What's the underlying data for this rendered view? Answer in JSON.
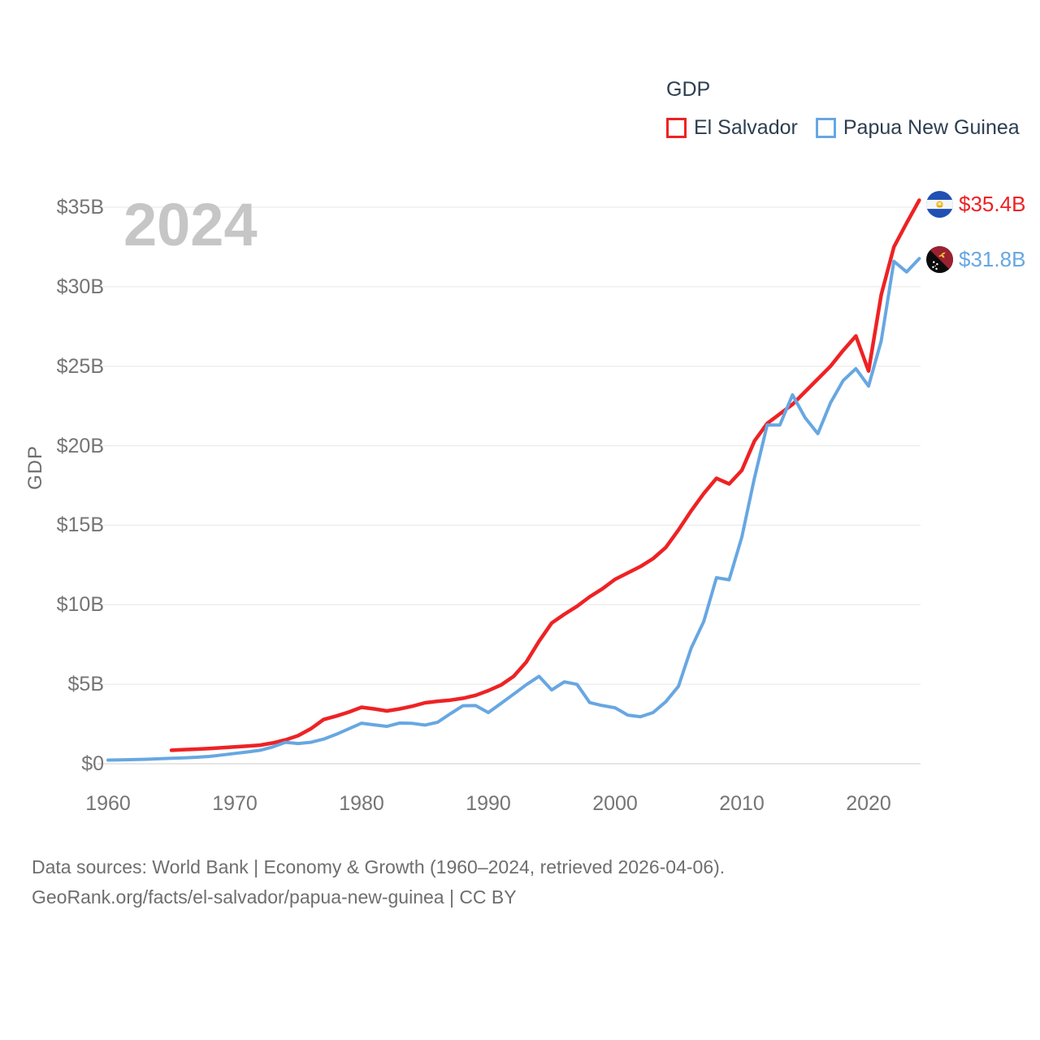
{
  "legend": {
    "title": "GDP",
    "items": [
      {
        "label": "El Salvador",
        "color": "#ee2224"
      },
      {
        "label": "Papua New Guinea",
        "color": "#67a7e2"
      }
    ]
  },
  "chart": {
    "watermark": "2024",
    "y_axis_title": "GDP"
  },
  "chart_data": {
    "type": "line",
    "title": "GDP",
    "x_range": [
      1960,
      2024
    ],
    "y_range": [
      0,
      35
    ],
    "grid": "horizontal",
    "legend_position": "top-right",
    "x_ticks": [
      {
        "label": "1960",
        "value": 1960
      },
      {
        "label": "1970",
        "value": 1970
      },
      {
        "label": "1980",
        "value": 1980
      },
      {
        "label": "1990",
        "value": 1990
      },
      {
        "label": "2000",
        "value": 2000
      },
      {
        "label": "2010",
        "value": 2010
      },
      {
        "label": "2020",
        "value": 2020
      }
    ],
    "y_ticks": [
      {
        "label": "$0",
        "value": 0
      },
      {
        "label": "$5B",
        "value": 5
      },
      {
        "label": "$10B",
        "value": 10
      },
      {
        "label": "$15B",
        "value": 15
      },
      {
        "label": "$20B",
        "value": 20
      },
      {
        "label": "$25B",
        "value": 25
      },
      {
        "label": "$30B",
        "value": 30
      },
      {
        "label": "$35B",
        "value": 35
      }
    ],
    "series": [
      {
        "name": "El Salvador",
        "color": "#ee2224",
        "icon": "el-salvador-flag-icon",
        "end_label": "$35.4B",
        "start_year": 1965,
        "values": [
          0.85,
          0.89,
          0.92,
          0.96,
          1.01,
          1.06,
          1.11,
          1.17,
          1.31,
          1.5,
          1.77,
          2.2,
          2.78,
          3.0,
          3.25,
          3.55,
          3.45,
          3.32,
          3.45,
          3.62,
          3.83,
          3.93,
          4.0,
          4.12,
          4.3,
          4.6,
          4.95,
          5.5,
          6.4,
          7.7,
          8.85,
          9.4,
          9.9,
          10.5,
          11.0,
          11.6,
          12.0,
          12.4,
          12.9,
          13.6,
          14.7,
          15.9,
          17.0,
          17.95,
          17.6,
          18.45,
          20.3,
          21.4,
          22.0,
          22.6,
          23.4,
          24.2,
          25.0,
          26.0,
          26.9,
          24.7,
          29.5,
          32.5,
          34.0,
          35.44
        ]
      },
      {
        "name": "Papua New Guinea",
        "color": "#67a7e2",
        "icon": "papua-new-guinea-flag-icon",
        "end_label": "$31.8B",
        "start_year": 1960,
        "values": [
          0.23,
          0.24,
          0.26,
          0.28,
          0.31,
          0.34,
          0.37,
          0.41,
          0.46,
          0.55,
          0.65,
          0.74,
          0.85,
          1.06,
          1.35,
          1.27,
          1.35,
          1.55,
          1.85,
          2.2,
          2.55,
          2.45,
          2.35,
          2.56,
          2.54,
          2.43,
          2.61,
          3.14,
          3.65,
          3.66,
          3.22,
          3.79,
          4.38,
          4.97,
          5.5,
          4.64,
          5.15,
          4.99,
          3.85,
          3.66,
          3.52,
          3.06,
          2.96,
          3.22,
          3.9,
          4.87,
          7.26,
          8.95,
          11.7,
          11.57,
          14.25,
          17.98,
          21.3,
          21.3,
          23.2,
          21.75,
          20.76,
          22.7,
          24.1,
          24.85,
          23.75,
          26.6,
          31.6,
          30.93,
          31.77
        ]
      }
    ]
  },
  "footer": {
    "line1": "Data sources: World Bank | Economy & Growth (1960–2024, retrieved 2026-04-06).",
    "line2": "GeoRank.org/facts/el-salvador/papua-new-guinea | CC BY"
  }
}
